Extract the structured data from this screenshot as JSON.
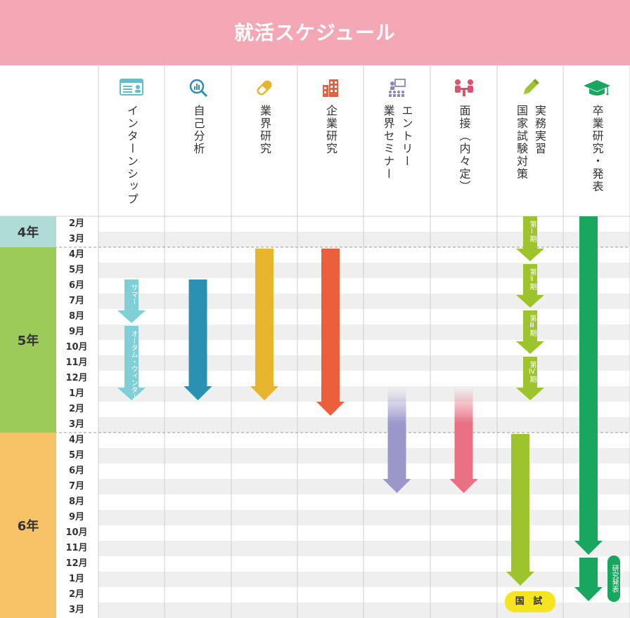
{
  "title": "就活スケジュール",
  "columns": [
    {
      "id": "internship",
      "labels": [
        "インターンシップ"
      ],
      "icon": "id-card-icon"
    },
    {
      "id": "self-analysis",
      "labels": [
        "自己分析"
      ],
      "icon": "magnifier-chart-icon"
    },
    {
      "id": "industry-research",
      "labels": [
        "業界研究"
      ],
      "icon": "capsule-icon"
    },
    {
      "id": "company-research",
      "labels": [
        "企業研究"
      ],
      "icon": "building-icon"
    },
    {
      "id": "entry",
      "labels": [
        "エントリー",
        "業界セミナー"
      ],
      "icon": "seminar-icon"
    },
    {
      "id": "interview",
      "labels": [
        "面接（内々定）"
      ],
      "icon": "interview-icon"
    },
    {
      "id": "practice",
      "labels": [
        "実務実習",
        "国家試験対策"
      ],
      "icon": "pencil-icon"
    },
    {
      "id": "graduation",
      "labels": [
        "卒業研究・発表"
      ],
      "icon": "graduation-cap-icon"
    }
  ],
  "years": [
    {
      "label": "4年",
      "color": "#b0dcd8",
      "start": 0,
      "count": 2
    },
    {
      "label": "5年",
      "color": "#9ccb5a",
      "start": 2,
      "count": 12
    },
    {
      "label": "6年",
      "color": "#f8c366",
      "start": 14,
      "count": 12
    }
  ],
  "months": [
    "2月",
    "3月",
    "4月",
    "5月",
    "6月",
    "7月",
    "8月",
    "9月",
    "10月",
    "11月",
    "12月",
    "1月",
    "2月",
    "3月",
    "4月",
    "5月",
    "6月",
    "7月",
    "8月",
    "9月",
    "10月",
    "11月",
    "12月",
    "1月",
    "2月",
    "3月"
  ],
  "bars": [
    {
      "col": 0,
      "from": 4,
      "to": 7,
      "color": "#7ecfd6",
      "label": "サマー"
    },
    {
      "col": 0,
      "from": 7,
      "to": 12,
      "color": "#7ecfd6",
      "label": "オータム・ウィンター"
    },
    {
      "col": 1,
      "from": 4,
      "to": 12,
      "color": "#2a91b2"
    },
    {
      "col": 2,
      "from": 2,
      "to": 12,
      "color": "#e8b52e"
    },
    {
      "col": 3,
      "from": 2,
      "to": 13,
      "color": "#ec5f3c"
    },
    {
      "col": 4,
      "from": 11,
      "to": 18,
      "color": "#9b97cb",
      "fade": true
    },
    {
      "col": 5,
      "from": 11,
      "to": 18,
      "color": "#e96f82",
      "fade": true
    },
    {
      "col": 6,
      "from": 0,
      "to": 3,
      "color": "#9dc42c",
      "label": "第Ⅰ期"
    },
    {
      "col": 6,
      "from": 3,
      "to": 6,
      "color": "#9dc42c",
      "label": "第Ⅱ期"
    },
    {
      "col": 6,
      "from": 6,
      "to": 9,
      "color": "#9dc42c",
      "label": "第Ⅲ期"
    },
    {
      "col": 6,
      "from": 9,
      "to": 12,
      "color": "#9dc42c",
      "label": "第Ⅳ期"
    },
    {
      "col": 6,
      "from": 14,
      "to": 24,
      "color": "#9dc42c"
    },
    {
      "col": 7,
      "from": 0,
      "to": 22,
      "color": "#19a65e"
    },
    {
      "col": 7,
      "from": 22,
      "to": 25,
      "color": "#19a65e"
    }
  ],
  "exam_pill": "国 試",
  "presentation_badge": "研究発表",
  "colors": {
    "title_bar": "#f4a7b5",
    "row_stripe": "#efefef",
    "grid_line": "#cfcfcf"
  }
}
